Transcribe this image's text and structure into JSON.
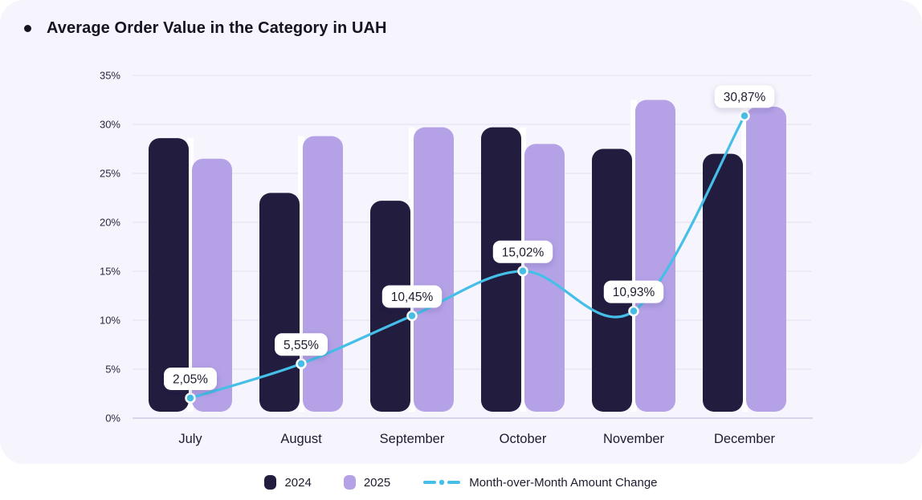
{
  "title": "Average Order Value in the Category in UAH",
  "legend": {
    "items": [
      {
        "label": "2024",
        "marker": "swatch",
        "color": "#221c3e"
      },
      {
        "label": "2025",
        "marker": "swatch",
        "color": "#b5a1e6"
      },
      {
        "label": "Month-over-Month Amount Change",
        "marker": "dashed-line",
        "color": "#45bfe7"
      }
    ]
  },
  "colors": {
    "card_background": "#f6f4fc",
    "grid_line": "#eae6f5",
    "axis_line": "#d9d4ea",
    "bar_2024": "#221c3e",
    "bar_2025": "#b5a1e6",
    "mom_line": "#45bfe7",
    "value_pill_background": "#ffffff",
    "text_dark": "#1d1c2e",
    "bar_gap_highlight": "#ffffff"
  },
  "chart_data": {
    "type": "bar+line",
    "title": "Average Order Value in the Category in UAH",
    "categories": [
      "July",
      "August",
      "September",
      "October",
      "November",
      "December"
    ],
    "series": [
      {
        "name": "2024",
        "type": "bar",
        "color": "#221c3e",
        "values": [
          28.6,
          23.0,
          22.2,
          29.7,
          27.5,
          27.0
        ]
      },
      {
        "name": "2025",
        "type": "bar",
        "color": "#b5a1e6",
        "values": [
          26.5,
          28.8,
          29.7,
          28.0,
          32.5,
          31.8
        ]
      },
      {
        "name": "Month-over-Month Amount Change",
        "type": "line",
        "color": "#45bfe7",
        "values": [
          2.05,
          5.55,
          10.45,
          15.02,
          10.93,
          30.87
        ],
        "point_labels": [
          "2,05%",
          "5,55%",
          "10,45%",
          "15,02%",
          "10,93%",
          "30,87%"
        ]
      }
    ],
    "y_ticks": [
      "0%",
      "5%",
      "10%",
      "15%",
      "20%",
      "25%",
      "30%",
      "35%"
    ],
    "ylim": [
      0,
      35
    ],
    "grid": "horizontal",
    "legend_position": "bottom"
  }
}
